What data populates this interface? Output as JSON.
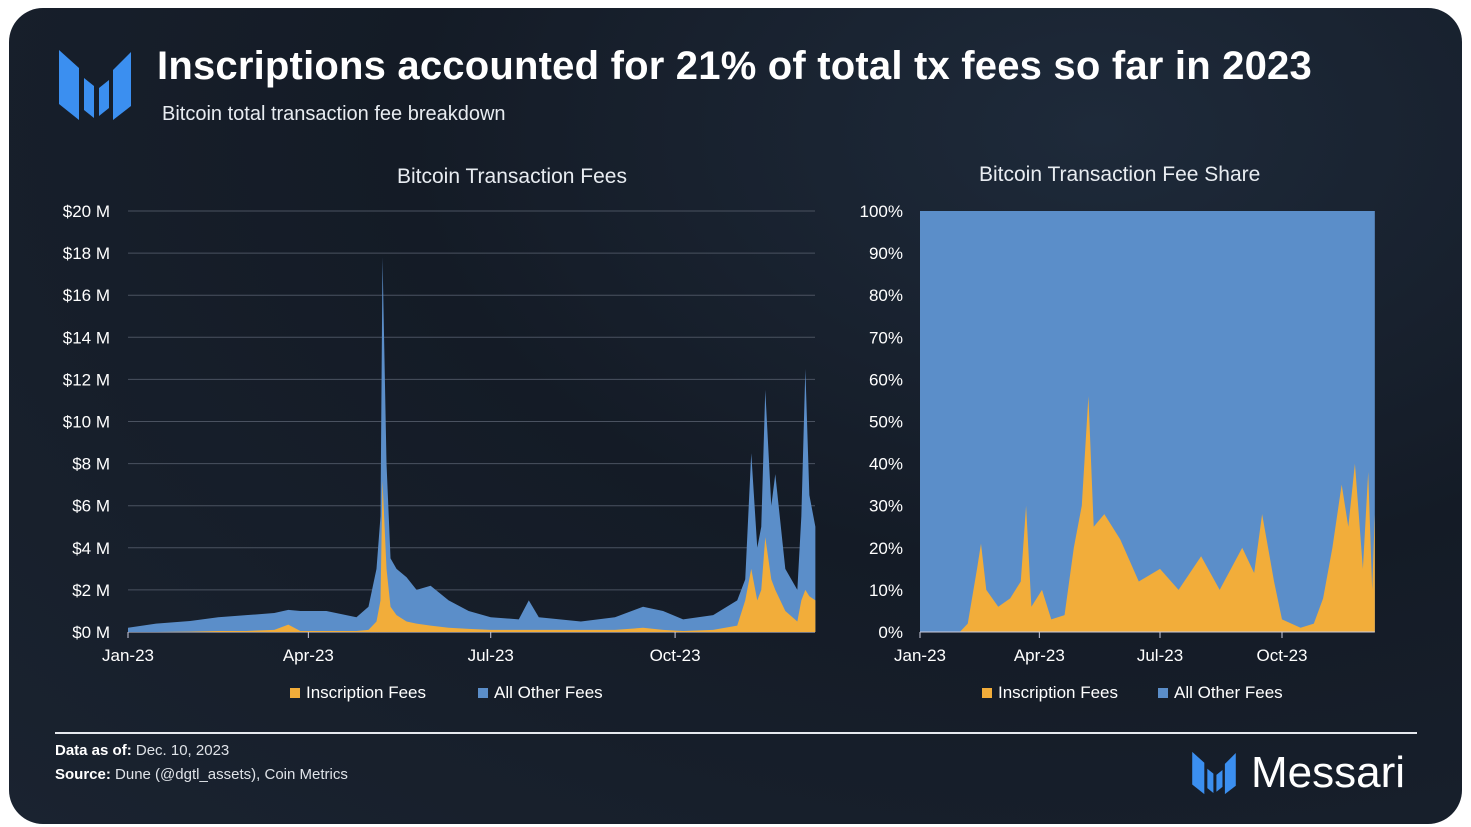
{
  "header": {
    "title": "Inscriptions accounted for 21% of total tx fees so far in 2023",
    "subtitle": "Bitcoin total transaction fee breakdown"
  },
  "colors": {
    "inscription": "#f2ad3a",
    "other": "#5b8ec9",
    "background": "#161e29"
  },
  "chart_data": [
    {
      "type": "area",
      "stacked": true,
      "title": "Bitcoin Transaction Fees",
      "ylim": [
        0,
        20
      ],
      "yunit": "$M",
      "yticks": [
        "$0 M",
        "$2 M",
        "$4 M",
        "$6 M",
        "$8 M",
        "$10 M",
        "$12 M",
        "$14 M",
        "$16 M",
        "$18 M",
        "$20 M"
      ],
      "xticks": [
        "Jan-23",
        "Apr-23",
        "Jul-23",
        "Oct-23"
      ],
      "grid": true,
      "legend": "bottom",
      "series_names": [
        "Inscription Fees",
        "All Other Fees"
      ],
      "points": [
        [
          "2023-01-01",
          0,
          0.2
        ],
        [
          "2023-01-15",
          0,
          0.4
        ],
        [
          "2023-02-01",
          0.02,
          0.5
        ],
        [
          "2023-02-15",
          0.05,
          0.65
        ],
        [
          "2023-03-01",
          0.05,
          0.75
        ],
        [
          "2023-03-15",
          0.1,
          0.8
        ],
        [
          "2023-03-22",
          0.35,
          0.7
        ],
        [
          "2023-03-28",
          0.05,
          0.95
        ],
        [
          "2023-04-10",
          0.05,
          0.95
        ],
        [
          "2023-04-25",
          0.05,
          0.65
        ],
        [
          "2023-05-01",
          0.1,
          1.1
        ],
        [
          "2023-05-05",
          0.5,
          2.5
        ],
        [
          "2023-05-07",
          1.5,
          4
        ],
        [
          "2023-05-08",
          7.2,
          10.6
        ],
        [
          "2023-05-10",
          3,
          5
        ],
        [
          "2023-05-12",
          1.2,
          2.3
        ],
        [
          "2023-05-15",
          0.8,
          2.2
        ],
        [
          "2023-05-20",
          0.5,
          2.1
        ],
        [
          "2023-05-25",
          0.4,
          1.6
        ],
        [
          "2023-06-01",
          0.3,
          1.9
        ],
        [
          "2023-06-10",
          0.2,
          1.3
        ],
        [
          "2023-06-20",
          0.15,
          0.85
        ],
        [
          "2023-07-01",
          0.1,
          0.6
        ],
        [
          "2023-07-15",
          0.1,
          0.5
        ],
        [
          "2023-07-20",
          0.1,
          1.4
        ],
        [
          "2023-07-25",
          0.1,
          0.6
        ],
        [
          "2023-08-15",
          0.1,
          0.4
        ],
        [
          "2023-09-01",
          0.1,
          0.6
        ],
        [
          "2023-09-15",
          0.2,
          1.0
        ],
        [
          "2023-09-25",
          0.1,
          0.9
        ],
        [
          "2023-10-05",
          0.05,
          0.55
        ],
        [
          "2023-10-20",
          0.1,
          0.7
        ],
        [
          "2023-11-01",
          0.3,
          1.2
        ],
        [
          "2023-11-05",
          1.5,
          1.0
        ],
        [
          "2023-11-08",
          3,
          5.5
        ],
        [
          "2023-11-11",
          1.5,
          2.5
        ],
        [
          "2023-11-13",
          2,
          3
        ],
        [
          "2023-11-15",
          4.5,
          7
        ],
        [
          "2023-11-18",
          2.5,
          3.5
        ],
        [
          "2023-11-20",
          2,
          5.5
        ],
        [
          "2023-11-25",
          1,
          2
        ],
        [
          "2023-12-01",
          0.5,
          1.5
        ],
        [
          "2023-12-03",
          1.5,
          4
        ],
        [
          "2023-12-05",
          2,
          10.5
        ],
        [
          "2023-12-07",
          1.7,
          4.8
        ],
        [
          "2023-12-10",
          1.5,
          3.5
        ]
      ]
    },
    {
      "type": "area",
      "stacked": true,
      "normalized": true,
      "title": "Bitcoin Transaction Fee Share",
      "ylim": [
        0,
        100
      ],
      "yunit": "%",
      "yticks": [
        "0%",
        "10%",
        "20%",
        "30%",
        "40%",
        "50%",
        "60%",
        "70%",
        "80%",
        "90%",
        "100%"
      ],
      "xticks": [
        "Jan-23",
        "Apr-23",
        "Jul-23",
        "Oct-23"
      ],
      "legend": "bottom",
      "series_names": [
        "Inscription Fees",
        "All Other Fees"
      ],
      "inscription_share": [
        [
          "2023-01-01",
          0
        ],
        [
          "2023-01-31",
          0
        ],
        [
          "2023-02-06",
          2
        ],
        [
          "2023-02-13",
          15
        ],
        [
          "2023-02-16",
          21
        ],
        [
          "2023-02-20",
          10
        ],
        [
          "2023-03-01",
          6
        ],
        [
          "2023-03-10",
          8
        ],
        [
          "2023-03-18",
          12
        ],
        [
          "2023-03-22",
          30
        ],
        [
          "2023-03-26",
          6
        ],
        [
          "2023-04-03",
          10
        ],
        [
          "2023-04-10",
          3
        ],
        [
          "2023-04-20",
          4
        ],
        [
          "2023-04-27",
          20
        ],
        [
          "2023-05-03",
          30
        ],
        [
          "2023-05-08",
          56
        ],
        [
          "2023-05-12",
          25
        ],
        [
          "2023-05-20",
          28
        ],
        [
          "2023-06-01",
          22
        ],
        [
          "2023-06-15",
          12
        ],
        [
          "2023-07-01",
          15
        ],
        [
          "2023-07-15",
          10
        ],
        [
          "2023-08-01",
          18
        ],
        [
          "2023-08-15",
          10
        ],
        [
          "2023-09-01",
          20
        ],
        [
          "2023-09-10",
          14
        ],
        [
          "2023-09-16",
          28
        ],
        [
          "2023-09-25",
          12
        ],
        [
          "2023-10-01",
          3
        ],
        [
          "2023-10-15",
          1
        ],
        [
          "2023-10-25",
          2
        ],
        [
          "2023-11-01",
          8
        ],
        [
          "2023-11-08",
          20
        ],
        [
          "2023-11-15",
          35
        ],
        [
          "2023-11-20",
          25
        ],
        [
          "2023-11-25",
          40
        ],
        [
          "2023-12-01",
          15
        ],
        [
          "2023-12-05",
          38
        ],
        [
          "2023-12-08",
          10
        ],
        [
          "2023-12-10",
          28
        ]
      ]
    }
  ],
  "footer": {
    "data_as_of_label": "Data as of:",
    "data_as_of": "Dec. 10, 2023",
    "source_label": "Source:",
    "source": "Dune (@dgtl_assets), Coin Metrics",
    "brand": "Messari"
  }
}
